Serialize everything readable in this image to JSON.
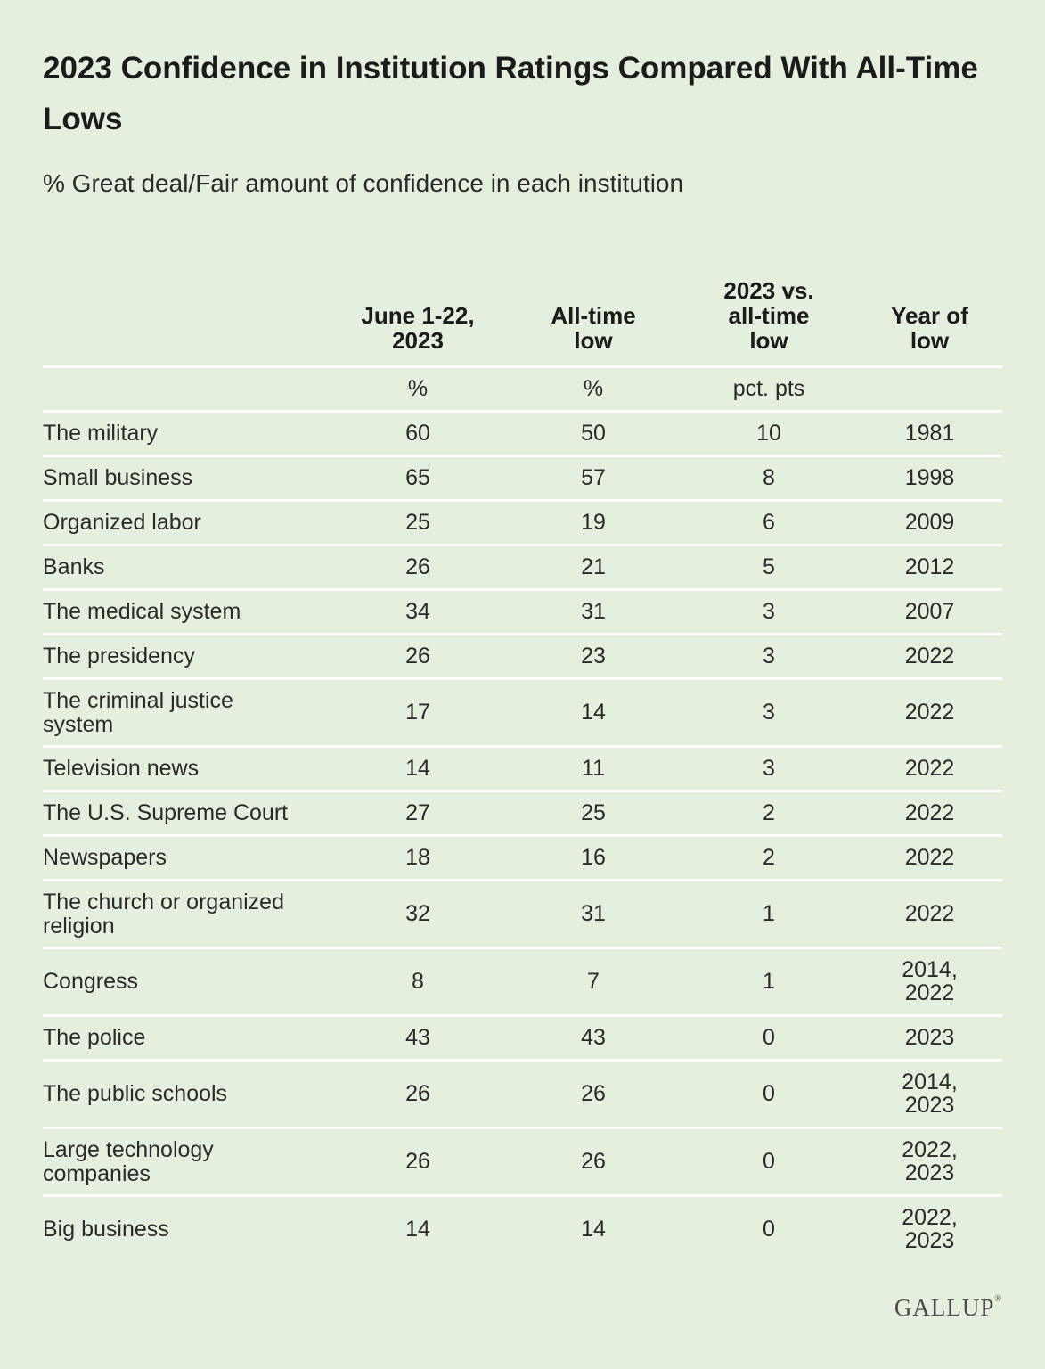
{
  "title": "2023 Confidence in Institution Ratings Compared With All-Time Lows",
  "subtitle": "% Great deal/Fair amount of confidence in each institution",
  "logo": "GALLUP",
  "chart_data": {
    "type": "table",
    "title": "2023 Confidence in Institution Ratings Compared With All-Time Lows",
    "subtitle": "% Great deal/Fair amount of confidence in each institution",
    "columns": [
      "",
      "June 1-22, 2023",
      "All-time low",
      "2023 vs. all-time low",
      "Year of low"
    ],
    "units": [
      "",
      "%",
      "%",
      "pct. pts",
      ""
    ],
    "rows": [
      {
        "institution": "The military",
        "june_2023": 60,
        "all_time_low": 50,
        "diff": 10,
        "year_of_low": "1981"
      },
      {
        "institution": "Small business",
        "june_2023": 65,
        "all_time_low": 57,
        "diff": 8,
        "year_of_low": "1998"
      },
      {
        "institution": "Organized labor",
        "june_2023": 25,
        "all_time_low": 19,
        "diff": 6,
        "year_of_low": "2009"
      },
      {
        "institution": "Banks",
        "june_2023": 26,
        "all_time_low": 21,
        "diff": 5,
        "year_of_low": "2012"
      },
      {
        "institution": "The medical system",
        "june_2023": 34,
        "all_time_low": 31,
        "diff": 3,
        "year_of_low": "2007"
      },
      {
        "institution": "The presidency",
        "june_2023": 26,
        "all_time_low": 23,
        "diff": 3,
        "year_of_low": "2022"
      },
      {
        "institution": "The criminal justice system",
        "june_2023": 17,
        "all_time_low": 14,
        "diff": 3,
        "year_of_low": "2022"
      },
      {
        "institution": "Television news",
        "june_2023": 14,
        "all_time_low": 11,
        "diff": 3,
        "year_of_low": "2022"
      },
      {
        "institution": "The U.S. Supreme Court",
        "june_2023": 27,
        "all_time_low": 25,
        "diff": 2,
        "year_of_low": "2022"
      },
      {
        "institution": "Newspapers",
        "june_2023": 18,
        "all_time_low": 16,
        "diff": 2,
        "year_of_low": "2022"
      },
      {
        "institution": "The church or organized religion",
        "june_2023": 32,
        "all_time_low": 31,
        "diff": 1,
        "year_of_low": "2022"
      },
      {
        "institution": "Congress",
        "june_2023": 8,
        "all_time_low": 7,
        "diff": 1,
        "year_of_low": "2014, 2022"
      },
      {
        "institution": "The police",
        "june_2023": 43,
        "all_time_low": 43,
        "diff": 0,
        "year_of_low": "2023"
      },
      {
        "institution": "The public schools",
        "june_2023": 26,
        "all_time_low": 26,
        "diff": 0,
        "year_of_low": "2014, 2023"
      },
      {
        "institution": "Large technology companies",
        "june_2023": 26,
        "all_time_low": 26,
        "diff": 0,
        "year_of_low": "2022, 2023"
      },
      {
        "institution": "Big business",
        "june_2023": 14,
        "all_time_low": 14,
        "diff": 0,
        "year_of_low": "2022, 2023"
      }
    ]
  }
}
